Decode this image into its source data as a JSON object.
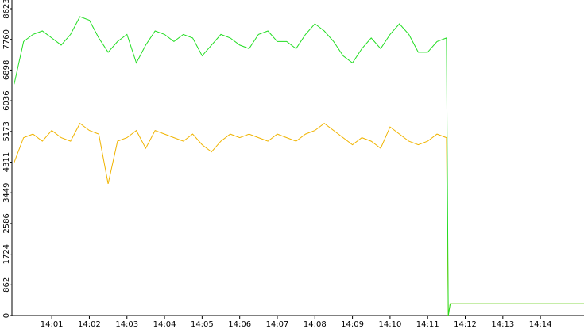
{
  "chart_data": {
    "type": "line",
    "x": [
      0,
      0.25,
      0.5,
      0.75,
      1,
      1.25,
      1.5,
      1.75,
      2,
      2.25,
      2.5,
      2.75,
      3,
      3.25,
      3.5,
      3.75,
      4,
      4.25,
      4.5,
      4.75,
      5,
      5.25,
      5.5,
      5.75,
      6,
      6.25,
      6.5,
      6.75,
      7,
      7.25,
      7.5,
      7.75,
      8,
      8.25,
      8.5,
      8.75,
      9,
      9.25,
      9.5,
      9.75,
      10,
      10.25,
      10.5,
      10.75,
      11,
      11.25,
      11.5,
      11.55,
      11.6,
      15.16
    ],
    "series": [
      {
        "name": "green",
        "color": "#22dd22",
        "values": [
          6500,
          7700,
          7900,
          8000,
          7800,
          7600,
          7900,
          8400,
          8300,
          7800,
          7400,
          7700,
          7900,
          7100,
          7600,
          8000,
          7900,
          7700,
          7900,
          7800,
          7300,
          7600,
          7900,
          7800,
          7600,
          7500,
          7900,
          8000,
          7700,
          7700,
          7500,
          7900,
          8200,
          8000,
          7700,
          7300,
          7100,
          7500,
          7800,
          7500,
          7900,
          8200,
          7900,
          7400,
          7400,
          7700,
          7800,
          0,
          330,
          330
        ]
      },
      {
        "name": "yellow",
        "color": "#f0b400",
        "values": [
          4300,
          5000,
          5100,
          4900,
          5200,
          5000,
          4900,
          5400,
          5200,
          5100,
          3700,
          4900,
          5000,
          5200,
          4700,
          5200,
          5100,
          5000,
          4900,
          5100,
          4800,
          4600,
          4900,
          5100,
          5000,
          5100,
          5000,
          4900,
          5100,
          5000,
          4900,
          5100,
          5200,
          5400,
          5200,
          5000,
          4800,
          5000,
          4900,
          4700,
          5300,
          5100,
          4900,
          4800,
          4900,
          5100,
          5000,
          0,
          330,
          330
        ]
      }
    ],
    "xlim": [
      -0.06,
      15.16
    ],
    "xticks": [
      {
        "value": 1,
        "label": "14:01"
      },
      {
        "value": 2,
        "label": "14:02"
      },
      {
        "value": 3,
        "label": "14:03"
      },
      {
        "value": 4,
        "label": "14:04"
      },
      {
        "value": 5,
        "label": "14:05"
      },
      {
        "value": 6,
        "label": "14:06"
      },
      {
        "value": 7,
        "label": "14:07"
      },
      {
        "value": 8,
        "label": "14:08"
      },
      {
        "value": 9,
        "label": "14:09"
      },
      {
        "value": 10,
        "label": "14:10"
      },
      {
        "value": 11,
        "label": "14:11"
      },
      {
        "value": 12,
        "label": "14:12"
      },
      {
        "value": 13,
        "label": "14:13"
      },
      {
        "value": 14,
        "label": "14:14"
      }
    ],
    "ylim": [
      0,
      8623
    ],
    "yticks": [
      0,
      862,
      1724,
      2586,
      3449,
      4311,
      5173,
      6036,
      6898,
      7760,
      8623
    ]
  }
}
